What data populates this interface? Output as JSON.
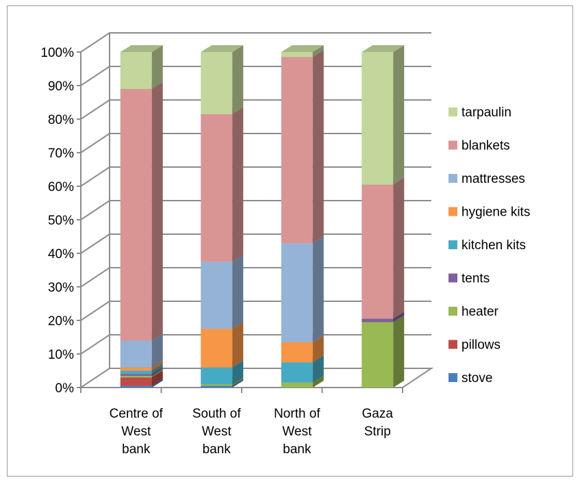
{
  "chart_data": {
    "type": "bar",
    "stacked": true,
    "normalized": true,
    "three_d": true,
    "categories": [
      [
        "Centre of",
        "West",
        "bank"
      ],
      [
        "South of",
        "West",
        "bank"
      ],
      [
        "North of",
        "West",
        "bank"
      ],
      [
        "Gaza",
        "Strip"
      ]
    ],
    "series": [
      {
        "name": "stove",
        "color": "#4a7ebb",
        "values": [
          0.5,
          0.5,
          0,
          0
        ]
      },
      {
        "name": "pillows",
        "color": "#be4b48",
        "values": [
          2.5,
          0,
          0,
          0
        ]
      },
      {
        "name": "heater",
        "color": "#98b954",
        "values": [
          0.5,
          0.5,
          1.5,
          19.5
        ]
      },
      {
        "name": "tents",
        "color": "#7d60a0",
        "values": [
          0.5,
          0,
          0,
          1
        ]
      },
      {
        "name": "kitchen kits",
        "color": "#46aac5",
        "values": [
          1,
          5,
          6,
          0
        ]
      },
      {
        "name": "hygiene kits",
        "color": "#f79646",
        "values": [
          1,
          11.5,
          6,
          0
        ]
      },
      {
        "name": "mattresses",
        "color": "#95b3d7",
        "values": [
          8,
          20,
          29.5,
          0
        ]
      },
      {
        "name": "blankets",
        "color": "#d99594",
        "values": [
          75,
          44,
          55.5,
          40
        ]
      },
      {
        "name": "tarpaulin",
        "color": "#c3d69b",
        "values": [
          11,
          18.5,
          1.5,
          39.5
        ]
      }
    ],
    "yticks": [
      "0%",
      "10%",
      "20%",
      "30%",
      "40%",
      "50%",
      "60%",
      "70%",
      "80%",
      "90%",
      "100%"
    ],
    "ylim": [
      0,
      100
    ],
    "grid": true,
    "legend_position": "right",
    "legend_order": [
      "tarpaulin",
      "blankets",
      "mattresses",
      "hygiene kits",
      "kitchen kits",
      "tents",
      "heater",
      "pillows",
      "stove"
    ]
  }
}
